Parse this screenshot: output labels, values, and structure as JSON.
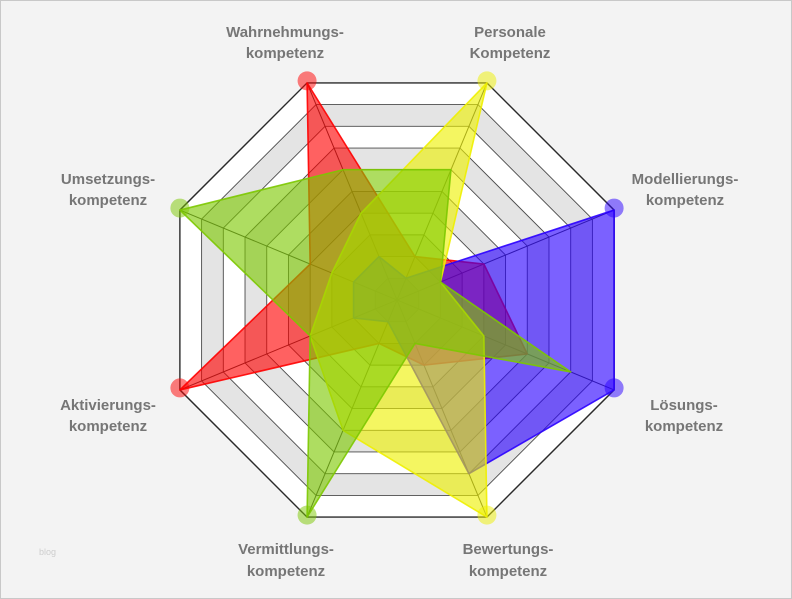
{
  "chart_data": {
    "type": "radar",
    "axes": [
      [
        "Wahrnehmungs-",
        "kompetenz"
      ],
      [
        "Personale",
        "Kompetenz"
      ],
      [
        "Modellierungs-",
        "kompetenz"
      ],
      [
        "Lösungs-",
        "kompetenz"
      ],
      [
        "Bewertungs-",
        "kompetenz"
      ],
      [
        "Vermittlungs-",
        "kompetenz"
      ],
      [
        "Aktivierungs-",
        "kompetenz"
      ],
      [
        "Umsetzungs-",
        "kompetenz"
      ]
    ],
    "range": [
      0,
      10
    ],
    "grid": true,
    "grid_step": 1,
    "series": [
      {
        "color": "#ff0000",
        "values": [
          10,
          2,
          4,
          6,
          3,
          2,
          10,
          4
        ]
      },
      {
        "color": "#2a00ff",
        "values": [
          2,
          1,
          10,
          10,
          8,
          1,
          2,
          2
        ]
      },
      {
        "color": "#eef000",
        "values": [
          4,
          10,
          2,
          4,
          10,
          6,
          4,
          3
        ]
      },
      {
        "color": "#7cc800",
        "values": [
          6,
          6,
          2,
          8,
          2,
          10,
          4,
          10
        ]
      }
    ]
  },
  "watermark": "blog"
}
